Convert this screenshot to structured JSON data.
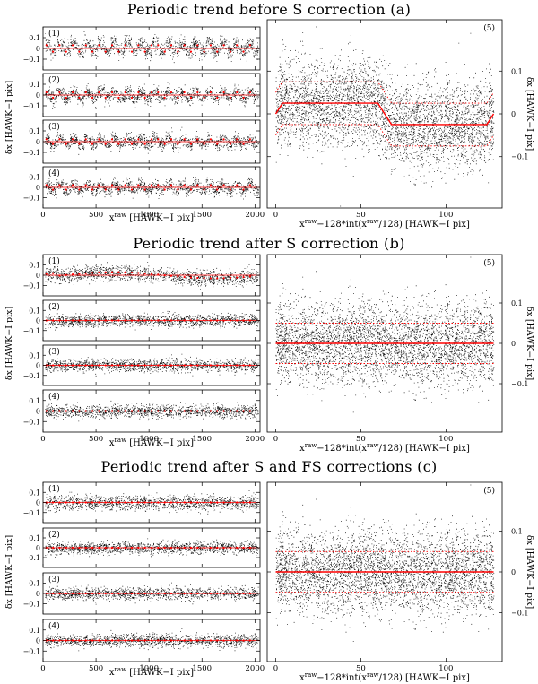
{
  "figure": {
    "sections": [
      {
        "id": "a",
        "title": "Periodic trend before S correction (a)",
        "panel_labels": [
          "(1)",
          "(2)",
          "(3)",
          "(4)"
        ],
        "right_label": "(5)",
        "left_ylabel": "δx [HAWK−I pix]",
        "right_ylabel": "δx [HAWK−I pix]",
        "left_xlabel_main": "x",
        "left_xlabel_sup": "raw",
        "left_xlabel_rest": " [HAWK−I pix]",
        "right_xlabel": "x^raw−128*int(x^raw/128) [HAWK−I pix]"
      },
      {
        "id": "b",
        "title": "Periodic trend after S correction (b)",
        "panel_labels": [
          "(1)",
          "(2)",
          "(3)",
          "(4)"
        ],
        "right_label": "(5)",
        "left_ylabel": "δx [HAWK−I pix]",
        "right_ylabel": "δx [HAWK−I pix]",
        "left_xlabel_main": "x",
        "left_xlabel_sup": "raw",
        "left_xlabel_rest": " [HAWK−I pix]",
        "right_xlabel": "x^raw−128*int(x^raw/128) [HAWK−I pix]"
      },
      {
        "id": "c",
        "title": "Periodic trend after S and FS corrections (c)",
        "panel_labels": [
          "(1)",
          "(2)",
          "(3)",
          "(4)"
        ],
        "right_label": "(5)",
        "left_ylabel": "δx [HAWK−I pix]",
        "right_ylabel": "δx [HAWK−I pix]",
        "left_xlabel_main": "x",
        "left_xlabel_sup": "raw",
        "left_xlabel_rest": " [HAWK−I pix]",
        "right_xlabel": "x^raw−128*int(x^raw/128) [HAWK−I pix]"
      }
    ],
    "colors": {
      "points": "#000000",
      "trend": "#ff0000",
      "axes": "#000000"
    }
  },
  "chart_data": [
    {
      "type": "scatter",
      "panel": "a-left",
      "x_range": [
        0,
        2048
      ],
      "y_range": [
        -0.2,
        0.2
      ],
      "x_ticks": [
        0,
        500,
        1000,
        1500,
        2000
      ],
      "y_ticks": [
        -0.1,
        0,
        0.1
      ],
      "y_tick_labels": [
        "−0.1",
        "0",
        "0.1"
      ],
      "period": 128,
      "amplitudes": [
        0.03,
        0.025,
        0.022,
        0.022
      ]
    },
    {
      "type": "scatter",
      "panel": "a-right",
      "x_range": [
        -5,
        133
      ],
      "y_range": [
        -0.22,
        0.22
      ],
      "x_ticks": [
        0,
        50,
        100
      ],
      "y_ticks": [
        -0.1,
        0,
        0.1
      ],
      "y_tick_labels": [
        "−0.1",
        "0",
        "0.1"
      ],
      "trend": {
        "x": [
          0,
          4,
          60,
          68,
          124,
          128
        ],
        "y": [
          0,
          0.025,
          0.025,
          -0.025,
          -0.025,
          0.0
        ]
      },
      "dispersion_band": [
        -0.05,
        0.05
      ]
    },
    {
      "type": "scatter",
      "panel": "b-left",
      "x_range": [
        0,
        2048
      ],
      "y_range": [
        -0.2,
        0.2
      ],
      "x_ticks": [
        0,
        500,
        1000,
        1500,
        2000
      ],
      "y_ticks": [
        -0.1,
        0,
        0.1
      ],
      "y_tick_labels": [
        "−0.1",
        "0",
        "0.1"
      ]
    },
    {
      "type": "scatter",
      "panel": "b-right",
      "x_range": [
        -5,
        133
      ],
      "y_range": [
        -0.22,
        0.22
      ],
      "x_ticks": [
        0,
        50,
        100
      ],
      "y_ticks": [
        -0.1,
        0,
        0.1
      ],
      "y_tick_labels": [
        "−0.1",
        "0",
        "0.1"
      ],
      "trend": {
        "x": [
          0,
          128
        ],
        "y": [
          0,
          0
        ]
      },
      "dispersion_band": [
        -0.05,
        0.05
      ]
    },
    {
      "type": "scatter",
      "panel": "c-left",
      "x_range": [
        0,
        2048
      ],
      "y_range": [
        -0.2,
        0.2
      ],
      "x_ticks": [
        0,
        500,
        1000,
        1500,
        2000
      ],
      "y_ticks": [
        -0.1,
        0,
        0.1
      ],
      "y_tick_labels": [
        "−0.1",
        "0",
        "0.1"
      ]
    },
    {
      "type": "scatter",
      "panel": "c-right",
      "x_range": [
        -5,
        133
      ],
      "y_range": [
        -0.22,
        0.22
      ],
      "x_ticks": [
        0,
        50,
        100
      ],
      "y_ticks": [
        -0.1,
        0,
        0.1
      ],
      "y_tick_labels": [
        "−0.1",
        "0",
        "0.1"
      ],
      "trend": {
        "x": [
          0,
          128
        ],
        "y": [
          0,
          0
        ]
      },
      "dispersion_band": [
        -0.05,
        0.05
      ]
    }
  ]
}
